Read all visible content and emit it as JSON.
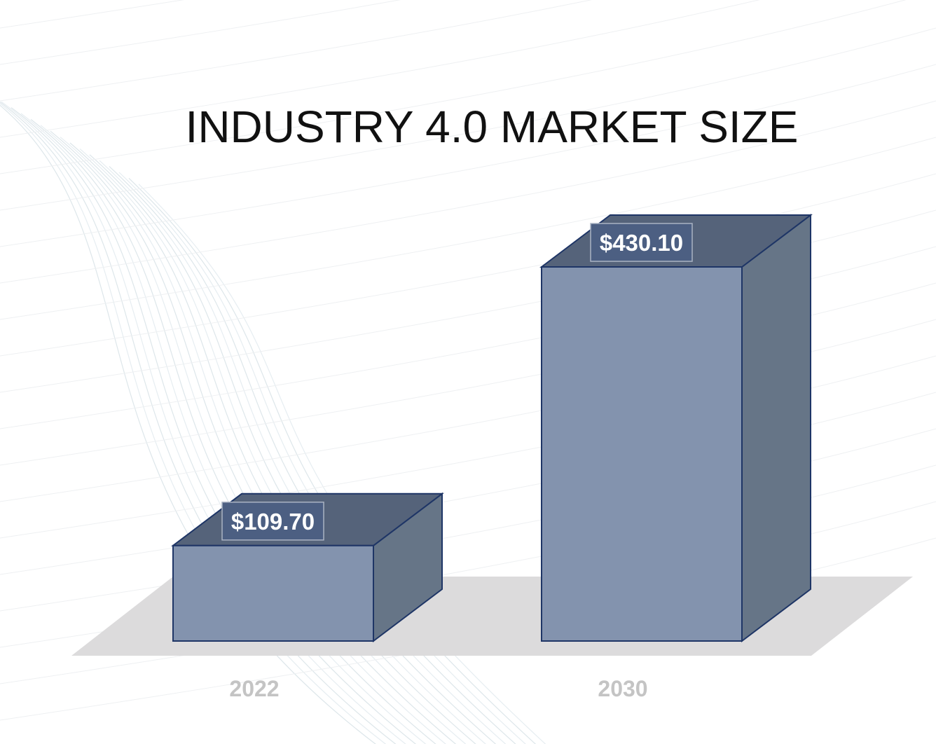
{
  "chart_data": {
    "type": "bar",
    "title": "INDUSTRY 4.0 MARKET SIZE",
    "categories": [
      "2022",
      "2030"
    ],
    "values": [
      109.7,
      430.1
    ],
    "value_labels": [
      "$109.70",
      "$430.10"
    ],
    "xlabel": "",
    "ylabel": "",
    "ylim": [
      0,
      430.1
    ],
    "grid": false,
    "legend": "none",
    "style": "3d-box"
  },
  "colors": {
    "bar_front": "#8393ae",
    "bar_top": "#55637a",
    "bar_side": "#667587",
    "bar_stroke": "#1e3566",
    "floor": "#dcdbdc",
    "label_box": "#4c5f82",
    "category_text": "#c4c4c4"
  }
}
